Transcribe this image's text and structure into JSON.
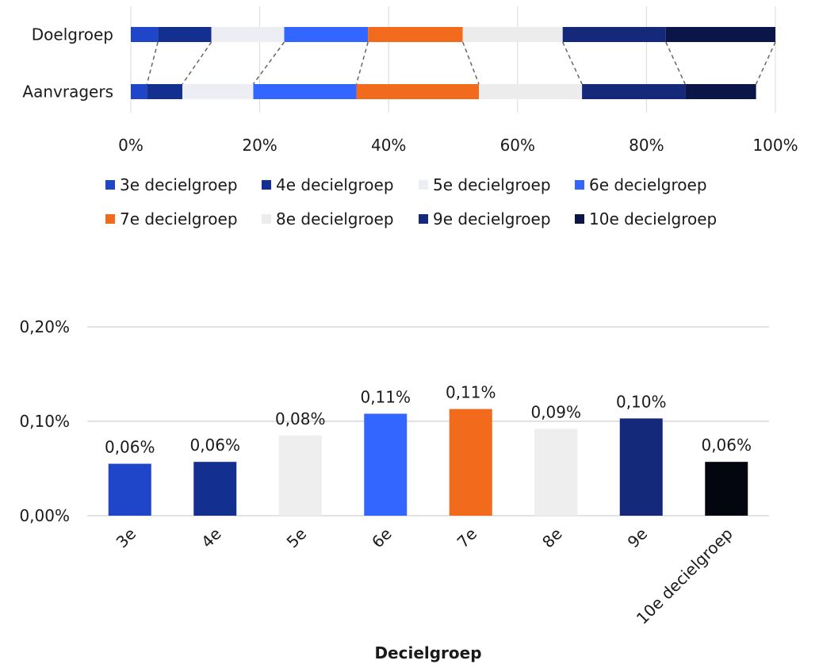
{
  "chart_data": [
    {
      "type": "bar",
      "orientation": "horizontal",
      "stacked": "100%",
      "categories": [
        "Doelgroep",
        "Aanvragers"
      ],
      "series": [
        {
          "name": "3e decielgroep",
          "values": [
            4.2,
            2.5
          ],
          "color": "#1f45c8"
        },
        {
          "name": "4e decielgroep",
          "values": [
            8.3,
            5.5
          ],
          "color": "#132f8f"
        },
        {
          "name": "5e decielgroep",
          "values": [
            11.3,
            11.0
          ],
          "color": "#eceef4"
        },
        {
          "name": "6e decielgroep",
          "values": [
            13.0,
            16.0
          ],
          "color": "#3366ff"
        },
        {
          "name": "7e decielgroep",
          "values": [
            14.7,
            19.0
          ],
          "color": "#f26b1c"
        },
        {
          "name": "8e decielgroep",
          "values": [
            15.5,
            16.0
          ],
          "color": "#ececec"
        },
        {
          "name": "9e decielgroep",
          "values": [
            16.0,
            16.0
          ],
          "color": "#14297a"
        },
        {
          "name": "10e decielgroep",
          "values": [
            17.0,
            11.0
          ],
          "color": "#0b1547"
        }
      ],
      "xlim": [
        0,
        100
      ],
      "xticks": [
        "0%",
        "20%",
        "40%",
        "60%",
        "80%",
        "100%"
      ],
      "grid": true,
      "legend_position": "bottom"
    },
    {
      "type": "bar",
      "categories": [
        "3e",
        "4e",
        "5e",
        "6e",
        "7e",
        "8e",
        "9e",
        "10e decielgroep"
      ],
      "values": [
        0.055,
        0.057,
        0.085,
        0.108,
        0.113,
        0.092,
        0.103,
        0.057
      ],
      "data_labels": [
        "0,06%",
        "0,06%",
        "0,08%",
        "0,11%",
        "0,11%",
        "0,09%",
        "0,10%",
        "0,06%"
      ],
      "colors": [
        "#1f45c8",
        "#132f8f",
        "#eeeeee",
        "#3366ff",
        "#f26b1c",
        "#eeeeee",
        "#14297a",
        "#03050f"
      ],
      "xlabel": "Decielgroep",
      "ylabel": "",
      "ylim": [
        0,
        0.2
      ],
      "yticks": [
        "0,00%",
        "0,10%",
        "0,20%"
      ],
      "grid": true
    }
  ]
}
